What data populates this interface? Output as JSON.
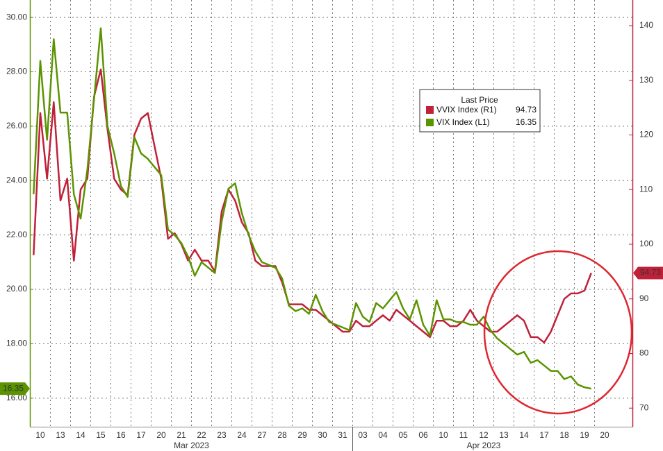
{
  "chart_data": {
    "type": "line",
    "legend_title": "Last Price",
    "month_labels": [
      "Mar 2023",
      "Apr 2023"
    ],
    "categories": [
      null,
      "10",
      null,
      null,
      "13",
      null,
      null,
      "14",
      null,
      null,
      "15",
      null,
      null,
      "16",
      null,
      null,
      "17",
      null,
      null,
      "20",
      null,
      null,
      "21",
      null,
      null,
      "22",
      null,
      null,
      "23",
      null,
      null,
      "24",
      null,
      null,
      "27",
      null,
      null,
      "28",
      null,
      null,
      "29",
      null,
      null,
      "30",
      null,
      null,
      "31",
      null,
      null,
      "03",
      null,
      null,
      "04",
      null,
      null,
      "05",
      null,
      null,
      "06",
      null,
      null,
      "10",
      null,
      null,
      "11",
      null,
      null,
      "12",
      null,
      null,
      "13",
      null,
      null,
      "14",
      null,
      null,
      "17",
      null,
      null,
      "18",
      null,
      null,
      "19",
      null,
      null,
      "20",
      null
    ],
    "series": [
      {
        "name": "VVIX Index (R1)",
        "color": "#c0203a",
        "axis": "y2",
        "values": [
          98,
          124,
          112,
          126,
          108,
          112,
          97,
          110,
          112,
          127,
          132,
          121,
          112,
          110,
          109,
          120,
          123,
          124,
          118,
          112,
          101,
          102,
          100,
          97,
          99,
          97,
          97,
          95,
          106,
          110,
          108,
          104,
          102,
          97,
          96,
          96,
          96,
          93,
          89,
          89,
          89,
          88,
          88,
          87,
          86,
          85,
          84,
          84,
          86,
          85,
          85,
          86,
          87,
          86,
          88,
          87,
          86,
          85,
          84,
          83,
          86,
          86,
          85,
          85,
          86,
          88,
          86,
          85,
          84,
          84,
          85,
          86,
          87,
          86,
          83,
          83,
          82,
          84,
          87,
          90,
          91,
          91,
          91.5,
          94.73,
          null,
          null,
          null
        ]
      },
      {
        "name": "VIX Index (L1)",
        "color": "#5b9400",
        "values": [
          23.5,
          28.4,
          25.5,
          29.2,
          26.5,
          26.5,
          23.5,
          22.6,
          24.4,
          27.0,
          29.6,
          26.0,
          25.0,
          23.8,
          23.4,
          25.6,
          25.0,
          24.8,
          24.5,
          24.2,
          22.2,
          22.0,
          21.7,
          21.2,
          20.5,
          21.0,
          20.8,
          20.6,
          22.5,
          23.7,
          23.9,
          22.8,
          22.0,
          21.4,
          21.0,
          20.9,
          20.8,
          20.4,
          19.4,
          19.2,
          19.3,
          19.1,
          19.8,
          19.2,
          18.8,
          18.7,
          18.6,
          18.5,
          19.5,
          19.0,
          18.8,
          19.5,
          19.3,
          19.6,
          19.9,
          19.3,
          18.9,
          19.6,
          18.7,
          18.3,
          19.6,
          18.9,
          18.9,
          18.8,
          18.8,
          18.7,
          18.7,
          19.0,
          18.5,
          18.2,
          18.0,
          17.8,
          17.6,
          17.7,
          17.3,
          17.4,
          17.2,
          17.0,
          17.0,
          16.7,
          16.8,
          16.5,
          16.4,
          16.35,
          null,
          null,
          null
        ]
      }
    ],
    "ylim": [
      14.95,
      30.64
    ],
    "yticks": [
      {
        "value": 16,
        "label": "16.00"
      },
      {
        "value": 18,
        "label": "18.00"
      },
      {
        "value": 20,
        "label": "20.00"
      },
      {
        "value": 22,
        "label": "22.00"
      },
      {
        "value": 24,
        "label": "24.00"
      },
      {
        "value": 26,
        "label": "26.00"
      },
      {
        "value": 28,
        "label": "28.00"
      },
      {
        "value": 30,
        "label": "30.00"
      }
    ],
    "y2lim": [
      66.6,
      144.7
    ],
    "y2ticks": [
      70,
      80,
      90,
      100,
      110,
      120,
      130,
      140
    ],
    "grid": true
  }
}
